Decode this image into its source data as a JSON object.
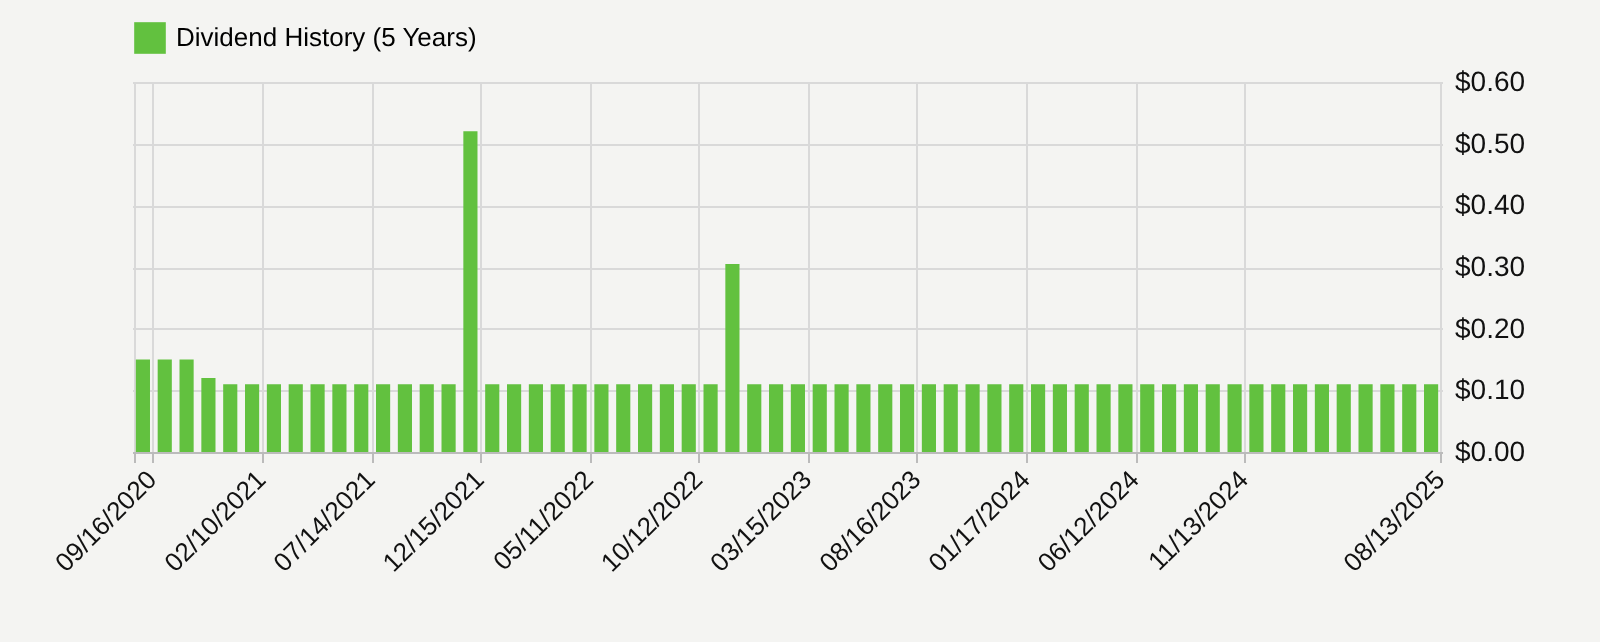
{
  "chart_data": {
    "type": "bar",
    "legend": "top",
    "categories": [
      "09/16/2020",
      null,
      null,
      null,
      null,
      "02/10/2021",
      null,
      null,
      null,
      null,
      "07/14/2021",
      null,
      null,
      null,
      null,
      "12/15/2021",
      null,
      null,
      null,
      null,
      "05/11/2022",
      null,
      null,
      null,
      null,
      "10/12/2022",
      null,
      null,
      null,
      null,
      "03/15/2023",
      null,
      null,
      null,
      null,
      "08/16/2023",
      null,
      null,
      null,
      null,
      "01/17/2024",
      null,
      null,
      null,
      null,
      "06/12/2024",
      null,
      null,
      null,
      null,
      "11/13/2024",
      null,
      null,
      null,
      null,
      null,
      null,
      null,
      null,
      "08/13/2025"
    ],
    "series": [
      {
        "name": "Dividend History (5 Years)",
        "color": "#62c13f",
        "values": [
          0.15,
          0.15,
          0.15,
          0.12,
          0.11,
          0.11,
          0.11,
          0.11,
          0.11,
          0.11,
          0.11,
          0.11,
          0.11,
          0.11,
          0.11,
          0.52,
          0.11,
          0.11,
          0.11,
          0.11,
          0.11,
          0.11,
          0.11,
          0.11,
          0.11,
          0.11,
          0.11,
          0.305,
          0.11,
          0.11,
          0.11,
          0.11,
          0.11,
          0.11,
          0.11,
          0.11,
          0.11,
          0.11,
          0.11,
          0.11,
          0.11,
          0.11,
          0.11,
          0.11,
          0.11,
          0.11,
          0.11,
          0.11,
          0.11,
          0.11,
          0.11,
          0.11,
          0.11,
          0.11,
          0.11,
          0.11,
          0.11,
          0.11,
          0.11,
          0.11
        ]
      }
    ],
    "ylim": [
      0,
      0.6
    ],
    "yticks": [
      {
        "value": 0,
        "label": "$0.00"
      },
      {
        "value": 0.1,
        "label": "$0.10"
      },
      {
        "value": 0.2,
        "label": "$0.20"
      },
      {
        "value": 0.3,
        "label": "$0.30"
      },
      {
        "value": 0.4,
        "label": "$0.40"
      },
      {
        "value": 0.5,
        "label": "$0.50"
      },
      {
        "value": 0.6,
        "label": "$0.60"
      }
    ],
    "grid": true
  }
}
